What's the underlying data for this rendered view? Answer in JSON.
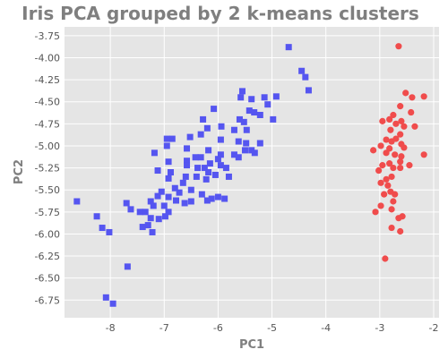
{
  "chart_data": {
    "type": "scatter",
    "title": "Iris PCA grouped by 2 k-means clusters",
    "xlabel": "PC1",
    "ylabel": "PC2",
    "xlim": [
      -8.85,
      -1.9
    ],
    "ylim": [
      -6.95,
      -3.65
    ],
    "xticks": [
      -8,
      -7,
      -6,
      -5,
      -4,
      -3,
      -2
    ],
    "yticks": [
      -3.75,
      -4.0,
      -4.25,
      -4.5,
      -4.75,
      -5.0,
      -5.25,
      -5.5,
      -5.75,
      -6.0,
      -6.25,
      -6.5,
      -6.75
    ],
    "grid": true,
    "legend": "none",
    "colors": {
      "background": "#e5e5e5",
      "grid": "#ffffff",
      "cluster_a": "#5555f0",
      "cluster_b": "#f04c4c"
    },
    "series": [
      {
        "marker": "square",
        "color": "#5555f0",
        "points": [
          [
            -4.69,
            -3.88
          ],
          [
            -4.45,
            -4.15
          ],
          [
            -4.38,
            -4.22
          ],
          [
            -4.32,
            -4.37
          ],
          [
            -4.92,
            -4.44
          ],
          [
            -5.55,
            -4.38
          ],
          [
            -5.58,
            -4.45
          ],
          [
            -5.38,
            -4.47
          ],
          [
            -5.14,
            -4.45
          ],
          [
            -5.08,
            -4.53
          ],
          [
            -5.42,
            -4.6
          ],
          [
            -5.33,
            -4.62
          ],
          [
            -5.6,
            -4.7
          ],
          [
            -5.52,
            -4.73
          ],
          [
            -5.22,
            -4.65
          ],
          [
            -4.98,
            -4.7
          ],
          [
            -5.47,
            -4.82
          ],
          [
            -5.7,
            -4.82
          ],
          [
            -5.94,
            -4.78
          ],
          [
            -6.2,
            -4.8
          ],
          [
            -6.08,
            -4.58
          ],
          [
            -6.28,
            -4.7
          ],
          [
            -6.32,
            -4.87
          ],
          [
            -6.52,
            -4.9
          ],
          [
            -5.95,
            -4.93
          ],
          [
            -5.62,
            -4.95
          ],
          [
            -5.48,
            -4.97
          ],
          [
            -5.22,
            -4.97
          ],
          [
            -5.38,
            -5.05
          ],
          [
            -6.85,
            -4.92
          ],
          [
            -6.95,
            -4.92
          ],
          [
            -6.95,
            -5.0
          ],
          [
            -6.58,
            -5.03
          ],
          [
            -6.18,
            -5.05
          ],
          [
            -5.95,
            -5.1
          ],
          [
            -5.7,
            -5.1
          ],
          [
            -5.5,
            -5.05
          ],
          [
            -5.32,
            -5.08
          ],
          [
            -5.62,
            -5.13
          ],
          [
            -6.0,
            -5.15
          ],
          [
            -6.32,
            -5.13
          ],
          [
            -7.18,
            -5.08
          ],
          [
            -6.92,
            -5.18
          ],
          [
            -6.58,
            -5.17
          ],
          [
            -6.42,
            -5.13
          ],
          [
            -6.15,
            -5.2
          ],
          [
            -6.25,
            -5.25
          ],
          [
            -5.95,
            -5.22
          ],
          [
            -5.85,
            -5.25
          ],
          [
            -6.18,
            -5.3
          ],
          [
            -6.38,
            -5.25
          ],
          [
            -6.58,
            -5.22
          ],
          [
            -6.88,
            -5.3
          ],
          [
            -7.12,
            -5.28
          ],
          [
            -6.92,
            -5.37
          ],
          [
            -6.6,
            -5.35
          ],
          [
            -6.4,
            -5.35
          ],
          [
            -6.22,
            -5.38
          ],
          [
            -6.05,
            -5.33
          ],
          [
            -5.8,
            -5.35
          ],
          [
            -6.65,
            -5.42
          ],
          [
            -6.8,
            -5.48
          ],
          [
            -7.05,
            -5.52
          ],
          [
            -6.92,
            -5.58
          ],
          [
            -6.72,
            -5.53
          ],
          [
            -6.5,
            -5.5
          ],
          [
            -6.3,
            -5.55
          ],
          [
            -6.12,
            -5.6
          ],
          [
            -6.0,
            -5.58
          ],
          [
            -5.88,
            -5.6
          ],
          [
            -6.2,
            -5.62
          ],
          [
            -6.5,
            -5.63
          ],
          [
            -7.12,
            -5.57
          ],
          [
            -7.25,
            -5.63
          ],
          [
            -7.2,
            -5.68
          ],
          [
            -7.0,
            -5.68
          ],
          [
            -6.92,
            -5.75
          ],
          [
            -6.78,
            -5.62
          ],
          [
            -6.62,
            -5.65
          ],
          [
            -7.35,
            -5.75
          ],
          [
            -7.45,
            -5.75
          ],
          [
            -7.7,
            -5.65
          ],
          [
            -7.62,
            -5.72
          ],
          [
            -7.25,
            -5.82
          ],
          [
            -7.1,
            -5.83
          ],
          [
            -7.3,
            -5.9
          ],
          [
            -7.4,
            -5.92
          ],
          [
            -7.22,
            -5.98
          ],
          [
            -6.98,
            -5.8
          ],
          [
            -8.62,
            -5.63
          ],
          [
            -8.25,
            -5.8
          ],
          [
            -8.15,
            -5.93
          ],
          [
            -8.02,
            -5.98
          ],
          [
            -7.68,
            -6.37
          ],
          [
            -8.08,
            -6.72
          ],
          [
            -7.95,
            -6.79
          ]
        ]
      },
      {
        "marker": "circle",
        "color": "#f04c4c",
        "points": [
          [
            -2.65,
            -3.87
          ],
          [
            -2.52,
            -4.4
          ],
          [
            -2.18,
            -4.44
          ],
          [
            -2.4,
            -4.45
          ],
          [
            -2.62,
            -4.55
          ],
          [
            -2.42,
            -4.62
          ],
          [
            -2.75,
            -4.65
          ],
          [
            -2.82,
            -4.7
          ],
          [
            -2.95,
            -4.72
          ],
          [
            -2.6,
            -4.72
          ],
          [
            -2.7,
            -4.75
          ],
          [
            -2.55,
            -4.78
          ],
          [
            -2.35,
            -4.78
          ],
          [
            -2.8,
            -4.82
          ],
          [
            -2.62,
            -4.87
          ],
          [
            -2.7,
            -4.92
          ],
          [
            -2.88,
            -4.93
          ],
          [
            -2.78,
            -4.95
          ],
          [
            -2.6,
            -4.98
          ],
          [
            -2.55,
            -5.02
          ],
          [
            -2.82,
            -5.03
          ],
          [
            -2.98,
            -5.0
          ],
          [
            -3.12,
            -5.05
          ],
          [
            -2.88,
            -5.08
          ],
          [
            -2.72,
            -5.1
          ],
          [
            -2.6,
            -5.12
          ],
          [
            -2.62,
            -5.18
          ],
          [
            -2.82,
            -5.2
          ],
          [
            -2.95,
            -5.22
          ],
          [
            -3.02,
            -5.28
          ],
          [
            -2.75,
            -5.25
          ],
          [
            -2.62,
            -5.25
          ],
          [
            -2.45,
            -5.22
          ],
          [
            -2.18,
            -5.1
          ],
          [
            -2.78,
            -5.35
          ],
          [
            -2.88,
            -5.38
          ],
          [
            -2.98,
            -5.42
          ],
          [
            -2.85,
            -5.45
          ],
          [
            -2.8,
            -5.52
          ],
          [
            -2.72,
            -5.55
          ],
          [
            -2.92,
            -5.55
          ],
          [
            -2.75,
            -5.63
          ],
          [
            -2.98,
            -5.68
          ],
          [
            -3.08,
            -5.75
          ],
          [
            -2.78,
            -5.72
          ],
          [
            -2.65,
            -5.82
          ],
          [
            -2.58,
            -5.8
          ],
          [
            -2.78,
            -5.93
          ],
          [
            -2.62,
            -5.97
          ],
          [
            -2.9,
            -6.28
          ]
        ]
      }
    ]
  }
}
